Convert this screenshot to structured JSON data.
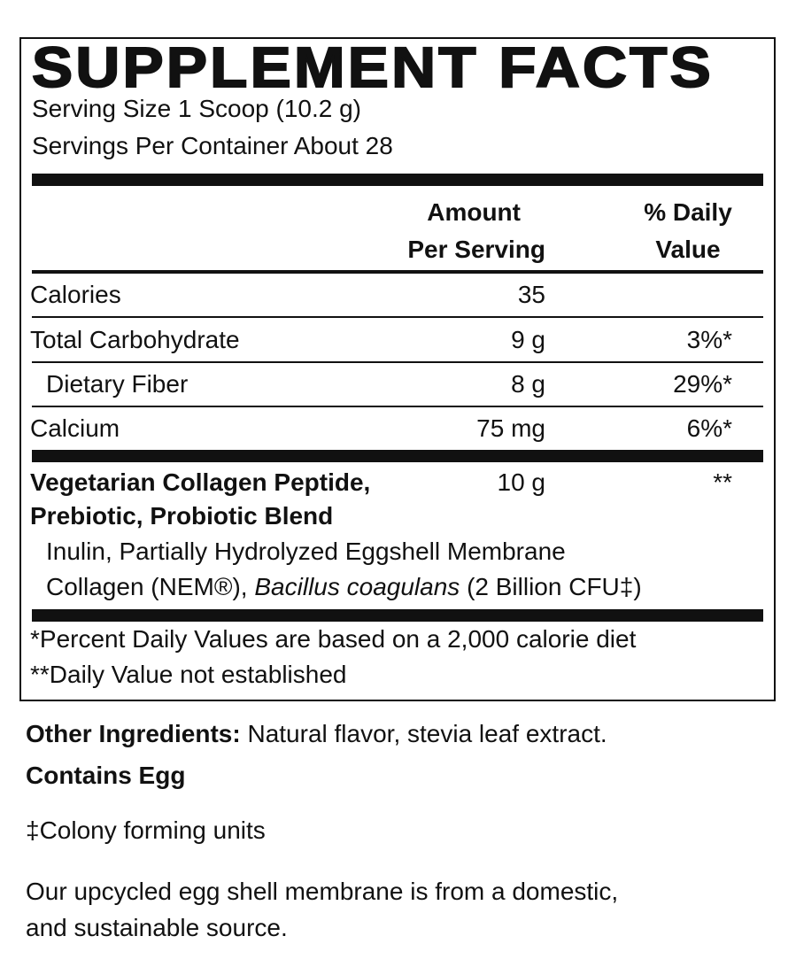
{
  "panel": {
    "title": "SUPPLEMENT FACTS",
    "serving_size": "Serving Size 1 Scoop (10.2 g)",
    "servings_per_container": "Servings Per Container About 28",
    "header": {
      "amount_line1": "Amount",
      "amount_line2": "Per Serving",
      "dv_line1": "% Daily",
      "dv_line2": "Value"
    },
    "rows": [
      {
        "name": "Calories",
        "amount": "35",
        "dv": ""
      },
      {
        "name": "Total Carbohydrate",
        "amount": "9 g",
        "dv": "3%*"
      },
      {
        "name": "Dietary Fiber",
        "amount": "8 g",
        "dv": "29%*"
      },
      {
        "name": "Calcium",
        "amount": "75 mg",
        "dv": "6%*"
      }
    ],
    "blend": {
      "name_line1": "Vegetarian Collagen Peptide,",
      "name_line2": "Prebiotic, Probiotic Blend",
      "amount": "10 g",
      "dv": "**",
      "ingredients_line1": "Inulin, Partially Hydrolyzed Eggshell Membrane",
      "ingredients_line2_a": "Collagen (NEM®), ",
      "ingredients_line2_italic": "Bacillus coagulans",
      "ingredients_line2_b": " (2 Billion CFU‡)"
    },
    "footnotes": [
      "*Percent Daily Values are based on a 2,000 calorie diet",
      "**Daily Value not established"
    ]
  },
  "below": {
    "other_label": "Other Ingredients:",
    "other_text": " Natural flavor, stevia leaf extract.",
    "contains": "Contains Egg",
    "cfu_note": "‡Colony forming units",
    "source_line1": "Our upcycled egg shell membrane is from a domestic,",
    "source_line2": "and sustainable source."
  }
}
